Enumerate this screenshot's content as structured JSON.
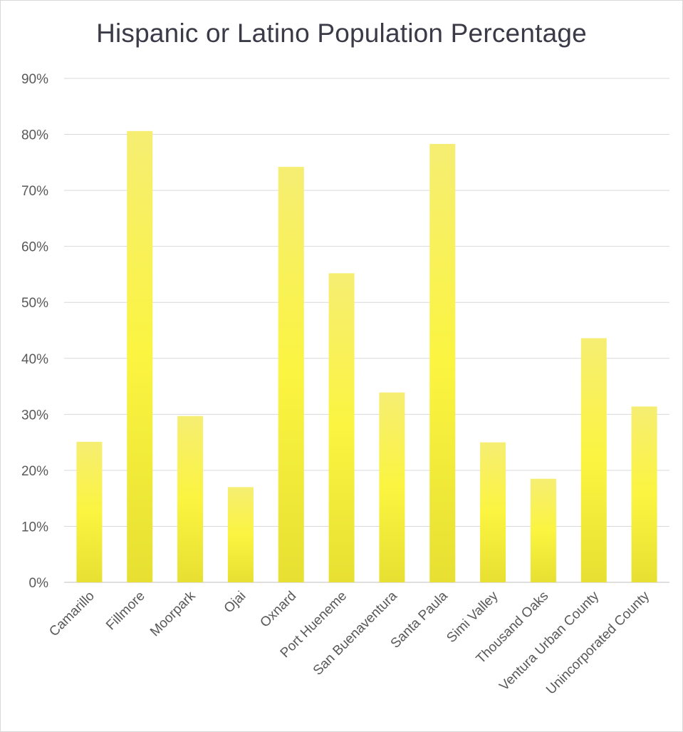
{
  "chart_data": {
    "type": "bar",
    "title": "Hispanic or Latino Population Percentage",
    "xlabel": "",
    "ylabel": "",
    "ylim": [
      0,
      90
    ],
    "y_ticks": [
      "0%",
      "10%",
      "20%",
      "30%",
      "40%",
      "50%",
      "60%",
      "70%",
      "80%",
      "90%"
    ],
    "categories": [
      "Camarillo",
      "Fillmore",
      "Moorpark",
      "Ojai",
      "Oxnard",
      "Port Hueneme",
      "San Buenaventura",
      "Santa Paula",
      "Simi Valley",
      "Thousand Oaks",
      "Ventura Urban County",
      "Unincorporated County"
    ],
    "values": [
      25.1,
      80.6,
      29.7,
      17.0,
      74.2,
      55.2,
      33.9,
      78.3,
      25.0,
      18.5,
      43.6,
      31.4
    ],
    "grid": true,
    "legend": "none",
    "colors": {
      "bar_top": "#f6ee72",
      "bar_mid": "#fbf440",
      "bar_bottom": "#e9e233",
      "grid": "#d9d9d9",
      "axis": "#bfbfbf"
    }
  }
}
